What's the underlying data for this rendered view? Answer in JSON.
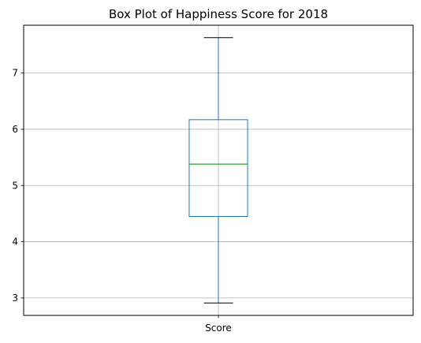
{
  "chart_data": {
    "type": "box",
    "title": "Box Plot of Happiness Score for 2018",
    "xlabel": "",
    "ylabel": "",
    "categories": [
      "Score"
    ],
    "ylim": [
      2.69,
      7.85
    ],
    "yticks": [
      3,
      4,
      5,
      6,
      7
    ],
    "grid": true,
    "boxes": [
      {
        "category": "Score",
        "whisker_low": 2.91,
        "q1": 4.45,
        "median": 5.38,
        "q3": 6.17,
        "whisker_high": 7.63
      }
    ],
    "colors": {
      "box": "#1f77b4",
      "whisker": "#1f77b4",
      "cap": "#000000",
      "median": "#2ca02c",
      "grid": "#b0b0b0"
    }
  }
}
